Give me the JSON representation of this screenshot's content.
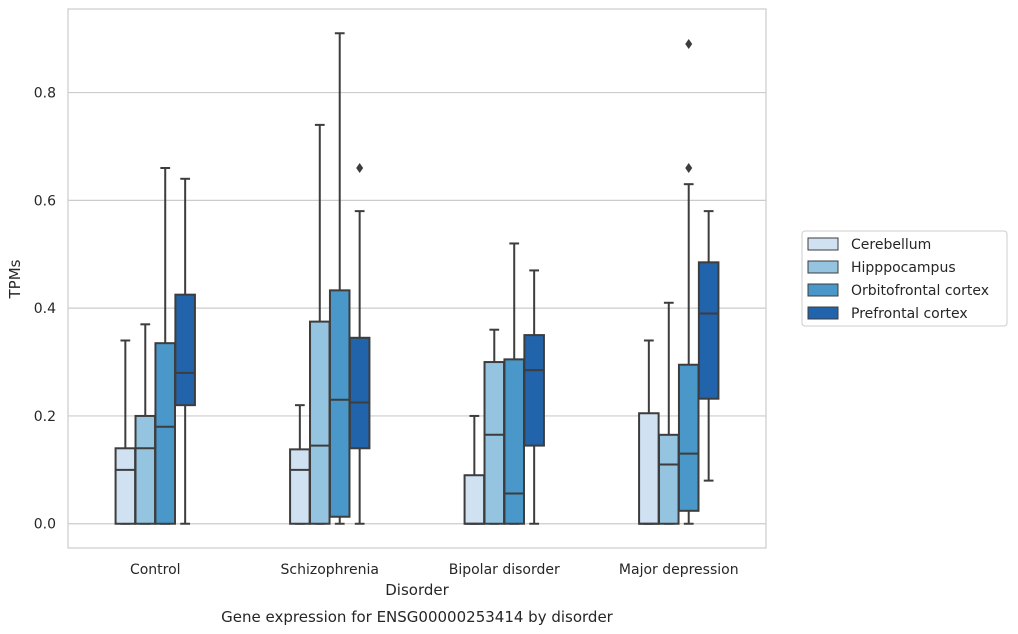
{
  "chart_data": {
    "type": "box",
    "title": "",
    "caption": "Gene expression for ENSG00000253414 by disorder",
    "xlabel": "Disorder",
    "ylabel": "TPMs",
    "ylim": [
      -0.045,
      0.955
    ],
    "yticks": [
      "0.0",
      "0.2",
      "0.4",
      "0.6",
      "0.8"
    ],
    "grid": "horizontal",
    "legend_position": "right",
    "categories": [
      "Control",
      "Schizophrenia",
      "Bipolar disorder",
      "Major depression"
    ],
    "series": [
      {
        "name": "Cerebellum",
        "color": "#d0e1f2",
        "boxes": [
          {
            "min": 0.0,
            "q1": 0.0,
            "median": 0.1,
            "q3": 0.14,
            "max": 0.34,
            "outliers": []
          },
          {
            "min": 0.0,
            "q1": 0.0,
            "median": 0.1,
            "q3": 0.138,
            "max": 0.22,
            "outliers": []
          },
          {
            "min": 0.0,
            "q1": 0.0,
            "median": 0.0,
            "q3": 0.09,
            "max": 0.2,
            "outliers": []
          },
          {
            "min": 0.0,
            "q1": 0.0,
            "median": 0.0,
            "q3": 0.205,
            "max": 0.34,
            "outliers": []
          }
        ]
      },
      {
        "name": "Hipppocampus",
        "color": "#94c4df",
        "boxes": [
          {
            "min": 0.0,
            "q1": 0.0,
            "median": 0.14,
            "q3": 0.2,
            "max": 0.37,
            "outliers": []
          },
          {
            "min": 0.0,
            "q1": 0.0,
            "median": 0.145,
            "q3": 0.375,
            "max": 0.74,
            "outliers": []
          },
          {
            "min": 0.0,
            "q1": 0.0,
            "median": 0.165,
            "q3": 0.3,
            "max": 0.36,
            "outliers": []
          },
          {
            "min": 0.0,
            "q1": 0.0,
            "median": 0.11,
            "q3": 0.165,
            "max": 0.41,
            "outliers": []
          }
        ]
      },
      {
        "name": "Orbitofrontal cortex",
        "color": "#4a98c9",
        "boxes": [
          {
            "min": 0.0,
            "q1": 0.0,
            "median": 0.18,
            "q3": 0.335,
            "max": 0.66,
            "outliers": []
          },
          {
            "min": 0.0,
            "q1": 0.013,
            "median": 0.23,
            "q3": 0.433,
            "max": 0.91,
            "outliers": []
          },
          {
            "min": 0.0,
            "q1": 0.0,
            "median": 0.056,
            "q3": 0.305,
            "max": 0.52,
            "outliers": []
          },
          {
            "min": 0.0,
            "q1": 0.024,
            "median": 0.13,
            "q3": 0.295,
            "max": 0.63,
            "outliers": [
              0.66,
              0.89
            ]
          }
        ]
      },
      {
        "name": "Prefrontal cortex",
        "color": "#2164ab",
        "boxes": [
          {
            "min": 0.0,
            "q1": 0.22,
            "median": 0.28,
            "q3": 0.425,
            "max": 0.64,
            "outliers": []
          },
          {
            "min": 0.0,
            "q1": 0.14,
            "median": 0.225,
            "q3": 0.345,
            "max": 0.58,
            "outliers": [
              0.66
            ]
          },
          {
            "min": 0.0,
            "q1": 0.145,
            "median": 0.285,
            "q3": 0.35,
            "max": 0.47,
            "outliers": []
          },
          {
            "min": 0.08,
            "q1": 0.232,
            "median": 0.39,
            "q3": 0.485,
            "max": 0.58,
            "outliers": []
          }
        ]
      }
    ]
  }
}
